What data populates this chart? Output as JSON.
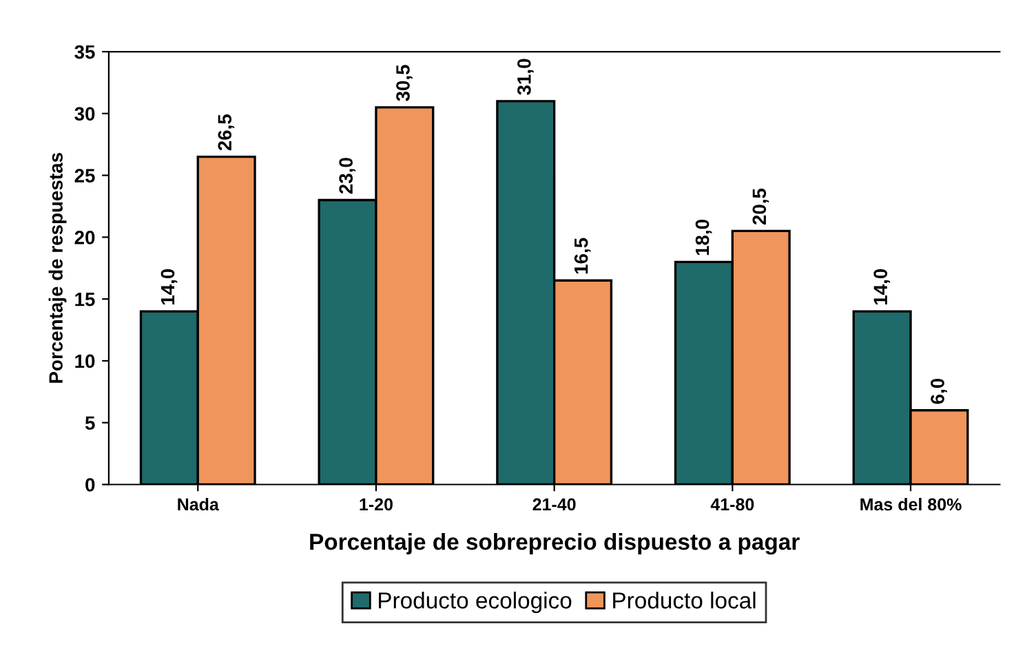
{
  "chart_data": {
    "type": "bar",
    "xlabel": "Porcentaje de sobreprecio dispuesto a pagar",
    "ylabel": "Porcentaje de respuestas",
    "categories": [
      "Nada",
      "1-20",
      "21-40",
      "41-80",
      "Mas del 80%"
    ],
    "series": [
      {
        "name": "Producto ecologico",
        "color": "#1f6a6a",
        "values": [
          14.0,
          23.0,
          31.0,
          18.0,
          14.0
        ],
        "value_labels": [
          "14,0",
          "23,0",
          "31,0",
          "18,0",
          "14,0"
        ]
      },
      {
        "name": "Producto local",
        "color": "#f0955c",
        "values": [
          26.5,
          30.5,
          16.5,
          20.5,
          6.0
        ],
        "value_labels": [
          "26,5",
          "30,5",
          "16,5",
          "20,5",
          "6,0"
        ]
      }
    ],
    "ylim": [
      0,
      35
    ],
    "yticks": [
      0,
      5,
      10,
      15,
      20,
      25,
      30,
      35
    ],
    "grid": false,
    "legend": "bottom"
  }
}
